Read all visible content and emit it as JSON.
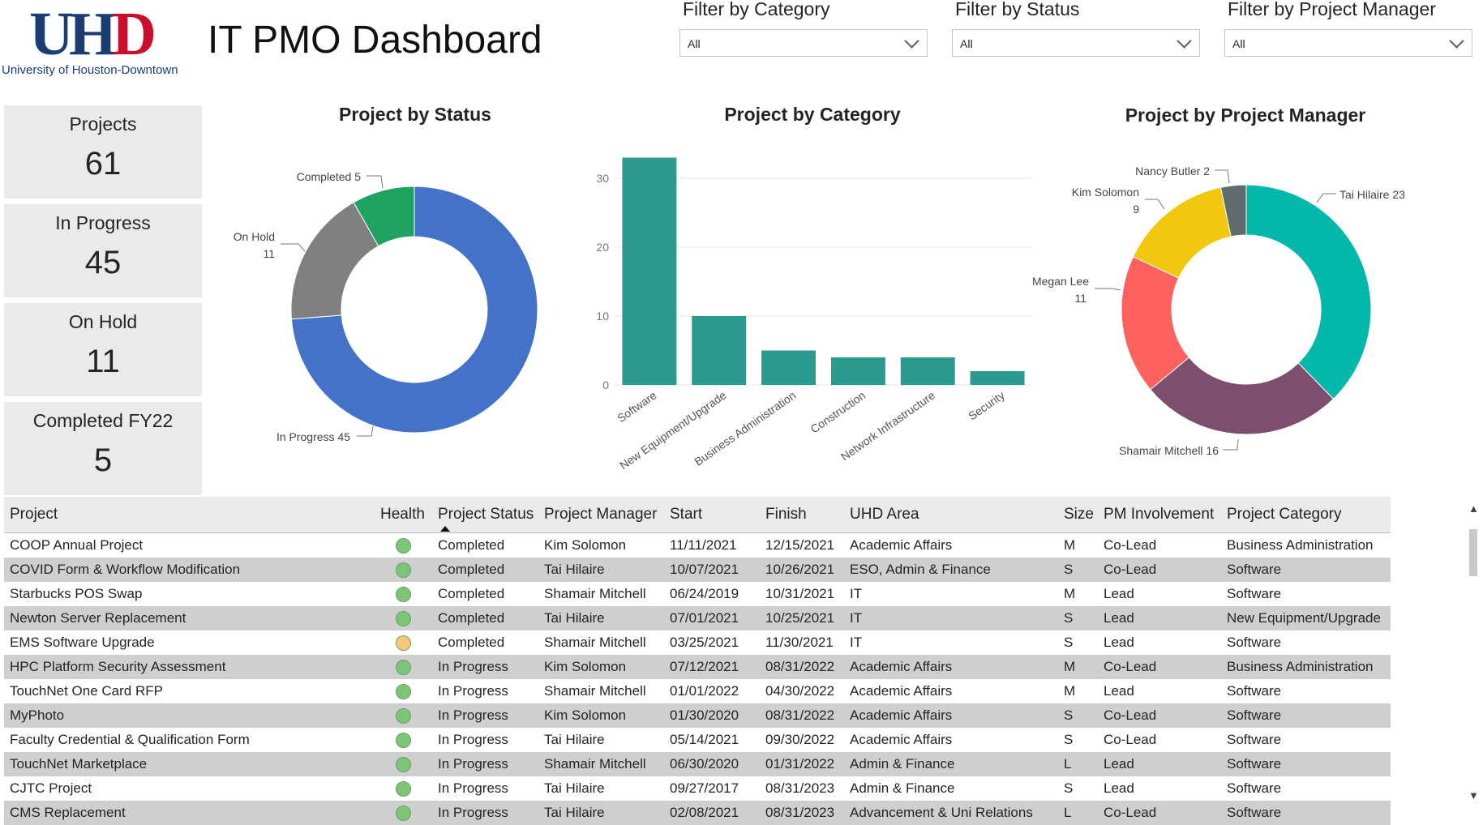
{
  "header": {
    "logo_text": {
      "u": "U",
      "h": "H",
      "d": "D"
    },
    "logo_tagline": "University of Houston-Downtown",
    "title": "IT PMO Dashboard"
  },
  "filters": [
    {
      "label": "Filter by Category",
      "value": "All"
    },
    {
      "label": "Filter by Status",
      "value": "All"
    },
    {
      "label": "Filter by Project Manager",
      "value": "All"
    }
  ],
  "kpis": [
    {
      "label": "Projects",
      "value": "61"
    },
    {
      "label": "In Progress",
      "value": "45"
    },
    {
      "label": "On Hold",
      "value": "11"
    },
    {
      "label": "Completed FY22",
      "value": "5"
    }
  ],
  "chart_data": [
    {
      "type": "pie",
      "title": "Project by Status",
      "donut": true,
      "slices": [
        {
          "label": "In Progress",
          "value": 45,
          "color": "#4472c8"
        },
        {
          "label": "On Hold",
          "value": 11,
          "color": "#808080"
        },
        {
          "label": "Completed",
          "value": 5,
          "color": "#1fa260"
        }
      ],
      "data_labels": [
        "In Progress 45",
        "On Hold",
        "11",
        "Completed 5"
      ]
    },
    {
      "type": "bar",
      "title": "Project by Category",
      "categories": [
        "Software",
        "New Equipment/Upgrade",
        "Business Administration",
        "Construction",
        "Network Infrastructure",
        "Security"
      ],
      "values": [
        33,
        10,
        5,
        4,
        4,
        2
      ],
      "color": "#2b9a8f",
      "ylim": [
        0,
        34
      ],
      "yticks": [
        0,
        10,
        20,
        30
      ],
      "grid": true
    },
    {
      "type": "pie",
      "title": "Project by Project Manager",
      "donut": true,
      "slices": [
        {
          "label": "Tai Hilaire",
          "value": 23,
          "color": "#01b8aa"
        },
        {
          "label": "Shamair Mitchell",
          "value": 16,
          "color": "#7e4e6e"
        },
        {
          "label": "Megan Lee",
          "value": 11,
          "color": "#fd625e"
        },
        {
          "label": "Kim Solomon",
          "value": 9,
          "color": "#f2c80f"
        },
        {
          "label": "Nancy Butler",
          "value": 2,
          "color": "#5f6b6d"
        }
      ],
      "data_labels": [
        "Tai Hilaire 23",
        "Shamair Mitchell 16",
        "Megan Lee",
        "11",
        "Kim Solomon",
        "9",
        "Nancy Butler 2"
      ]
    }
  ],
  "table": {
    "columns": [
      "Project",
      "Health",
      "Project Status",
      "Project Manager",
      "Start",
      "Finish",
      "UHD Area",
      "Size",
      "PM Involvement",
      "Project Category"
    ],
    "health_colors": {
      "green": "#7cc576",
      "yellow": "#f7c77a"
    },
    "rows": [
      {
        "project": "COOP Annual Project",
        "health": "green",
        "status": "Completed",
        "pm": "Kim Solomon",
        "start": "11/11/2021",
        "finish": "12/15/2021",
        "area": "Academic Affairs",
        "size": "M",
        "involvement": "Co-Lead",
        "category": "Business Administration"
      },
      {
        "project": "COVID Form & Workflow Modification",
        "health": "green",
        "status": "Completed",
        "pm": "Tai Hilaire",
        "start": "10/07/2021",
        "finish": "10/26/2021",
        "area": "ESO, Admin & Finance",
        "size": "S",
        "involvement": "Co-Lead",
        "category": "Software"
      },
      {
        "project": "Starbucks POS Swap",
        "health": "green",
        "status": "Completed",
        "pm": "Shamair Mitchell",
        "start": "06/24/2019",
        "finish": "10/31/2021",
        "area": "IT",
        "size": "M",
        "involvement": "Lead",
        "category": "Software"
      },
      {
        "project": "Newton Server Replacement",
        "health": "green",
        "status": "Completed",
        "pm": "Tai Hilaire",
        "start": "07/01/2021",
        "finish": "10/25/2021",
        "area": "IT",
        "size": "S",
        "involvement": "Lead",
        "category": "New Equipment/Upgrade"
      },
      {
        "project": "EMS Software Upgrade",
        "health": "yellow",
        "status": "Completed",
        "pm": "Shamair Mitchell",
        "start": "03/25/2021",
        "finish": "11/30/2021",
        "area": "IT",
        "size": "S",
        "involvement": "Lead",
        "category": "Software"
      },
      {
        "project": "HPC Platform Security Assessment",
        "health": "green",
        "status": "In Progress",
        "pm": "Kim Solomon",
        "start": "07/12/2021",
        "finish": "08/31/2022",
        "area": "Academic Affairs",
        "size": "M",
        "involvement": "Co-Lead",
        "category": "Business Administration"
      },
      {
        "project": "TouchNet One Card RFP",
        "health": "green",
        "status": "In Progress",
        "pm": "Shamair Mitchell",
        "start": "01/01/2022",
        "finish": "04/30/2022",
        "area": "Academic Affairs",
        "size": "M",
        "involvement": "Lead",
        "category": "Software"
      },
      {
        "project": "MyPhoto",
        "health": "green",
        "status": "In Progress",
        "pm": "Kim Solomon",
        "start": "01/30/2020",
        "finish": "08/31/2022",
        "area": "Academic Affairs",
        "size": "S",
        "involvement": "Co-Lead",
        "category": "Software"
      },
      {
        "project": "Faculty Credential & Qualification Form",
        "health": "green",
        "status": "In Progress",
        "pm": "Tai Hilaire",
        "start": "05/14/2021",
        "finish": "09/30/2022",
        "area": "Academic Affairs",
        "size": "S",
        "involvement": "Co-Lead",
        "category": "Software"
      },
      {
        "project": "TouchNet Marketplace",
        "health": "green",
        "status": "In Progress",
        "pm": "Shamair Mitchell",
        "start": "06/30/2020",
        "finish": "01/31/2022",
        "area": "Admin & Finance",
        "size": "L",
        "involvement": "Lead",
        "category": "Software"
      },
      {
        "project": "CJTC Project",
        "health": "green",
        "status": "In Progress",
        "pm": "Tai Hilaire",
        "start": "09/27/2017",
        "finish": "08/31/2023",
        "area": "Admin & Finance",
        "size": "S",
        "involvement": "Lead",
        "category": "Software"
      },
      {
        "project": "CMS Replacement",
        "health": "green",
        "status": "In Progress",
        "pm": "Tai Hilaire",
        "start": "02/08/2021",
        "finish": "08/31/2023",
        "area": "Advancement & Uni Relations",
        "size": "L",
        "involvement": "Co-Lead",
        "category": "Software"
      }
    ]
  },
  "icons": {
    "dropdown": "chevron-down-icon",
    "sort": "sort-ascending-icon",
    "scroll_up": "scroll-up-icon",
    "scroll_down": "scroll-down-icon"
  }
}
